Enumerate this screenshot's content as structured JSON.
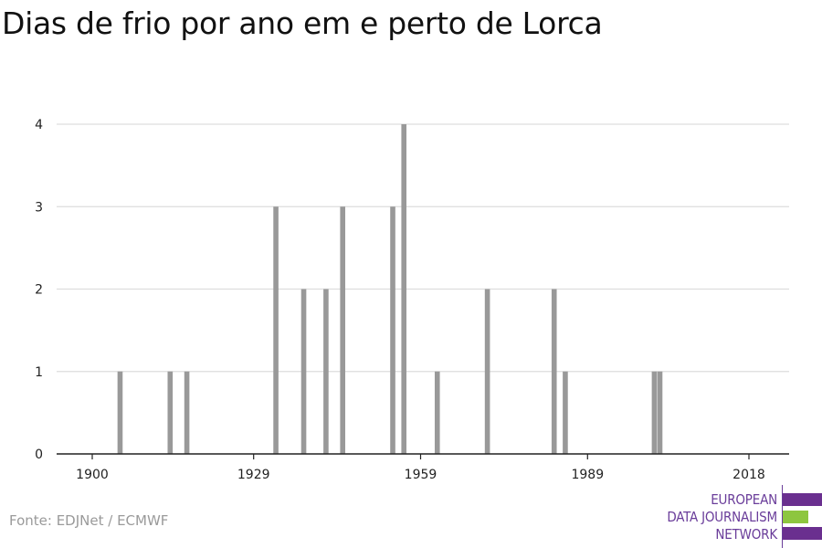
{
  "title": "Dias de frio por ano em e perto de Lorca",
  "source": "Fonte: EDJNet / ECMWF",
  "logo": {
    "lines": [
      "EUROPEAN",
      "DATA JOURNALISM",
      "NETWORK"
    ],
    "colors": {
      "purple": "#6a2f8f",
      "green": "#8dc63f"
    }
  },
  "chart_data": {
    "type": "bar",
    "title": "Dias de frio por ano em e perto de Lorca",
    "xlabel": "",
    "ylabel": "",
    "xlim": [
      1900,
      2018
    ],
    "ylim": [
      0,
      4
    ],
    "x_ticks": [
      "1900",
      "1929",
      "1959",
      "1989",
      "2018"
    ],
    "y_ticks": [
      "0",
      "1",
      "2",
      "3",
      "4"
    ],
    "grid": true,
    "bar_color": "#999999",
    "x": [
      1905,
      1914,
      1917,
      1933,
      1938,
      1942,
      1945,
      1954,
      1956,
      1962,
      1971,
      1983,
      1985,
      2001,
      2002
    ],
    "values": [
      1,
      1,
      1,
      3,
      2,
      2,
      3,
      3,
      4,
      1,
      2,
      2,
      1,
      1,
      1
    ]
  }
}
